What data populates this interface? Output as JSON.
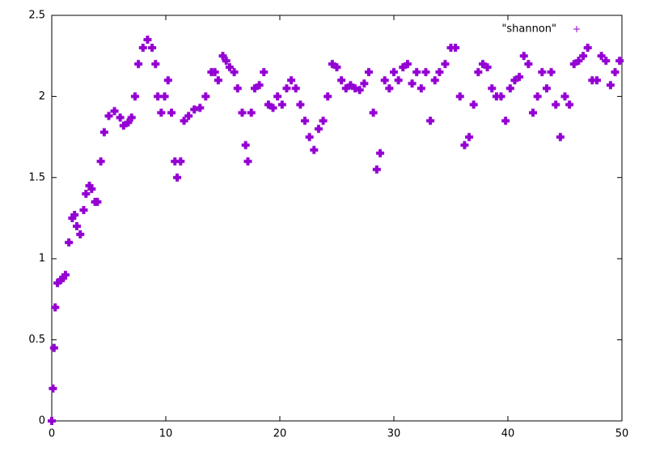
{
  "chart_data": {
    "type": "scatter",
    "x": [
      0,
      0.1,
      0.2,
      0.3,
      0.5,
      0.8,
      1,
      1.2,
      1.5,
      1.8,
      2,
      2.2,
      2.5,
      2.8,
      3,
      3.3,
      3.5,
      3.8,
      4,
      4.3,
      4.6,
      5,
      5.5,
      6,
      6.3,
      6.7,
      7,
      7.3,
      7.6,
      8,
      8.4,
      8.8,
      9.1,
      9.3,
      9.6,
      9.9,
      10.2,
      10.5,
      10.8,
      11,
      11.3,
      11.6,
      12,
      12.5,
      13,
      13.5,
      14,
      14.3,
      14.6,
      15,
      15.3,
      15.6,
      16,
      16.3,
      16.7,
      17,
      17.2,
      17.5,
      17.8,
      18.2,
      18.6,
      19,
      19.4,
      19.8,
      20.2,
      20.6,
      21,
      21.4,
      21.8,
      22.2,
      22.6,
      23,
      23.4,
      23.8,
      24.2,
      24.6,
      25,
      25.4,
      25.8,
      26.2,
      26.6,
      27,
      27.4,
      27.8,
      28.2,
      28.5,
      28.8,
      29.2,
      29.6,
      30,
      30.4,
      30.8,
      31.2,
      31.6,
      32,
      32.4,
      32.8,
      33.2,
      33.6,
      34,
      34.5,
      35,
      35.4,
      35.8,
      36.2,
      36.6,
      37,
      37.4,
      37.8,
      38.2,
      38.6,
      39,
      39.4,
      39.8,
      40.2,
      40.6,
      41,
      41.4,
      41.8,
      42.2,
      42.6,
      43,
      43.4,
      43.8,
      44.2,
      44.6,
      45,
      45.4,
      45.8,
      46.2,
      46.6,
      47,
      47.4,
      47.8,
      48.2,
      48.6,
      49,
      49.4,
      49.8
    ],
    "series": [
      {
        "name": "\"shannon\"",
        "color": "#9400d3",
        "values": [
          0,
          0.2,
          0.45,
          0.7,
          0.85,
          0.87,
          0.88,
          0.9,
          1.1,
          1.25,
          1.27,
          1.2,
          1.15,
          1.3,
          1.4,
          1.45,
          1.43,
          1.35,
          1.35,
          1.6,
          1.78,
          1.88,
          1.91,
          1.87,
          1.82,
          1.84,
          1.87,
          2.0,
          2.2,
          2.3,
          2.35,
          2.3,
          2.2,
          2.0,
          1.9,
          2.0,
          2.1,
          1.9,
          1.6,
          1.5,
          1.6,
          1.85,
          1.88,
          1.92,
          1.93,
          2.0,
          2.15,
          2.15,
          2.1,
          2.25,
          2.22,
          2.18,
          2.15,
          2.05,
          1.9,
          1.7,
          1.6,
          1.9,
          2.05,
          2.07,
          2.15,
          1.95,
          1.93,
          2.0,
          1.95,
          2.05,
          2.1,
          2.05,
          1.95,
          1.85,
          1.75,
          1.67,
          1.8,
          1.85,
          2.0,
          2.2,
          2.18,
          2.1,
          2.05,
          2.07,
          2.05,
          2.04,
          2.08,
          2.15,
          1.9,
          1.55,
          1.65,
          2.1,
          2.05,
          2.15,
          2.1,
          2.18,
          2.2,
          2.08,
          2.15,
          2.05,
          2.15,
          1.85,
          2.1,
          2.15,
          2.2,
          2.3,
          2.3,
          2.0,
          1.7,
          1.75,
          1.95,
          2.15,
          2.2,
          2.18,
          2.05,
          2.0,
          2.0,
          1.85,
          2.05,
          2.1,
          2.12,
          2.25,
          2.2,
          1.9,
          2.0,
          2.15,
          2.05,
          2.15,
          1.95,
          1.75,
          2.0,
          1.95,
          2.2,
          2.22,
          2.25,
          2.3,
          2.1,
          2.1,
          2.25,
          2.22,
          2.07,
          2.15,
          2.22
        ]
      }
    ],
    "xlim": [
      0,
      50
    ],
    "xticks": [
      0,
      10,
      20,
      30,
      40,
      50
    ],
    "ylim": [
      0,
      2.5
    ],
    "yticks": [
      0,
      0.5,
      1,
      1.5,
      2,
      2.5
    ],
    "legend": "top-right"
  }
}
